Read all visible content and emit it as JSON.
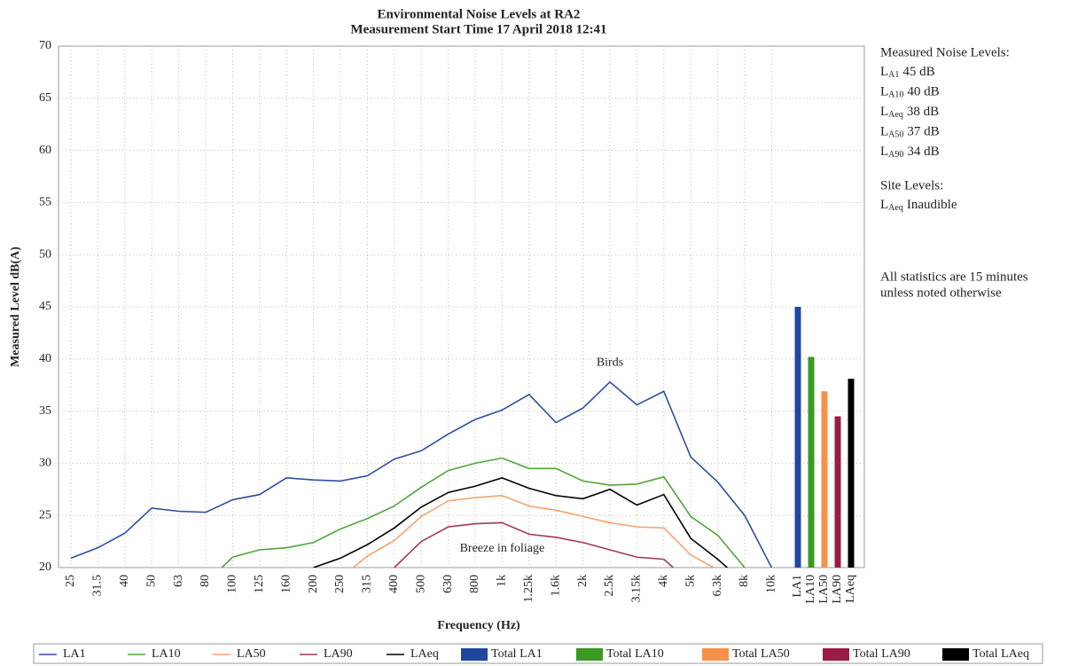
{
  "chart_data": {
    "type": "line",
    "title": "Environmental Noise Levels at RA2",
    "subtitle": "Measurement Start Time 17 April 2018 12:41",
    "x_label": "Frequency (Hz)",
    "y_label": "Measured Level dB(A)",
    "categories": [
      "25",
      "31.5",
      "40",
      "50",
      "63",
      "80",
      "100",
      "125",
      "160",
      "200",
      "250",
      "315",
      "400",
      "500",
      "630",
      "800",
      "1k",
      "1.25k",
      "1.6k",
      "2k",
      "2.5k",
      "3.15k",
      "4k",
      "5k",
      "6.3k",
      "8k",
      "10k"
    ],
    "series": [
      {
        "name": "LA1",
        "color": "#2f4ea1",
        "values": [
          20.9,
          21.9,
          23.3,
          25.7,
          25.4,
          25.3,
          26.5,
          27.0,
          28.6,
          28.4,
          28.3,
          28.8,
          30.4,
          31.2,
          32.8,
          34.2,
          35.1,
          36.6,
          33.9,
          35.3,
          37.8,
          35.6,
          36.9,
          30.6,
          28.2,
          25.0,
          20.0
        ]
      },
      {
        "name": "LA10",
        "color": "#4ea53a",
        "values": [
          null,
          null,
          null,
          null,
          null,
          18.5,
          21.0,
          21.7,
          21.9,
          22.4,
          23.7,
          24.7,
          25.9,
          27.7,
          29.3,
          30.0,
          30.5,
          29.5,
          29.5,
          28.3,
          27.9,
          28.0,
          28.7,
          24.9,
          23.1,
          20.0,
          null
        ]
      },
      {
        "name": "LA50",
        "color": "#f7a26a",
        "values": [
          null,
          null,
          null,
          null,
          null,
          null,
          null,
          null,
          null,
          null,
          19.0,
          21.1,
          22.6,
          24.9,
          26.4,
          26.7,
          26.9,
          25.9,
          25.5,
          24.9,
          24.3,
          23.9,
          23.8,
          21.2,
          19.8,
          null,
          null
        ]
      },
      {
        "name": "LA90",
        "color": "#a3345a",
        "values": [
          null,
          null,
          null,
          null,
          null,
          null,
          null,
          null,
          null,
          null,
          null,
          null,
          20.0,
          22.5,
          23.9,
          24.2,
          24.3,
          23.2,
          22.9,
          22.4,
          21.7,
          21.0,
          20.8,
          18.5,
          null,
          null,
          null
        ]
      },
      {
        "name": "LAeq",
        "color": "#000000",
        "values": [
          null,
          null,
          null,
          null,
          null,
          null,
          null,
          null,
          null,
          20.0,
          20.9,
          22.2,
          23.8,
          25.8,
          27.2,
          27.8,
          28.6,
          27.6,
          26.9,
          26.6,
          27.5,
          26.0,
          27.0,
          22.8,
          20.8,
          18.5,
          null
        ]
      }
    ],
    "total_categories": [
      "LA1",
      "LA10",
      "LA50",
      "LA90",
      "LAeq"
    ],
    "totals": [
      {
        "name": "Total LA1",
        "color": "#1f47a0",
        "value": 45.0
      },
      {
        "name": "Total LA10",
        "color": "#3a9a22",
        "value": 40.2
      },
      {
        "name": "Total LA50",
        "color": "#f79147",
        "value": 36.9
      },
      {
        "name": "Total LA90",
        "color": "#9b1c46",
        "value": 34.5
      },
      {
        "name": "Total LAeq",
        "color": "#000000",
        "value": 38.1
      }
    ],
    "ylim": [
      20,
      70
    ],
    "yticks": [
      20,
      25,
      30,
      35,
      40,
      45,
      50,
      55,
      60,
      65,
      70
    ],
    "grid": true,
    "legend": "bottom",
    "annotations": [
      {
        "text": "Birds",
        "x": "2.5k",
        "y": 39.6
      },
      {
        "text": "Breeze in foliage",
        "x": "1k",
        "y": 21.8
      }
    ],
    "notes": {
      "measured_heading": "Measured Noise Levels:",
      "measured": [
        {
          "symbol": "L",
          "subscript": "A1",
          "text": "45 dB"
        },
        {
          "symbol": "L",
          "subscript": "A10",
          "text": "40 dB"
        },
        {
          "symbol": "L",
          "subscript": "Aeq",
          "text": "38 dB"
        },
        {
          "symbol": "L",
          "subscript": "A50",
          "text": "37 dB"
        },
        {
          "symbol": "L",
          "subscript": "A90",
          "text": "34 dB"
        }
      ],
      "site_heading": "Site Levels:",
      "site": [
        {
          "symbol": "L",
          "subscript": "Aeq",
          "text": "Inaudible"
        }
      ],
      "footnote": [
        "All statistics are 15 minutes",
        "unless noted otherwise"
      ]
    }
  }
}
